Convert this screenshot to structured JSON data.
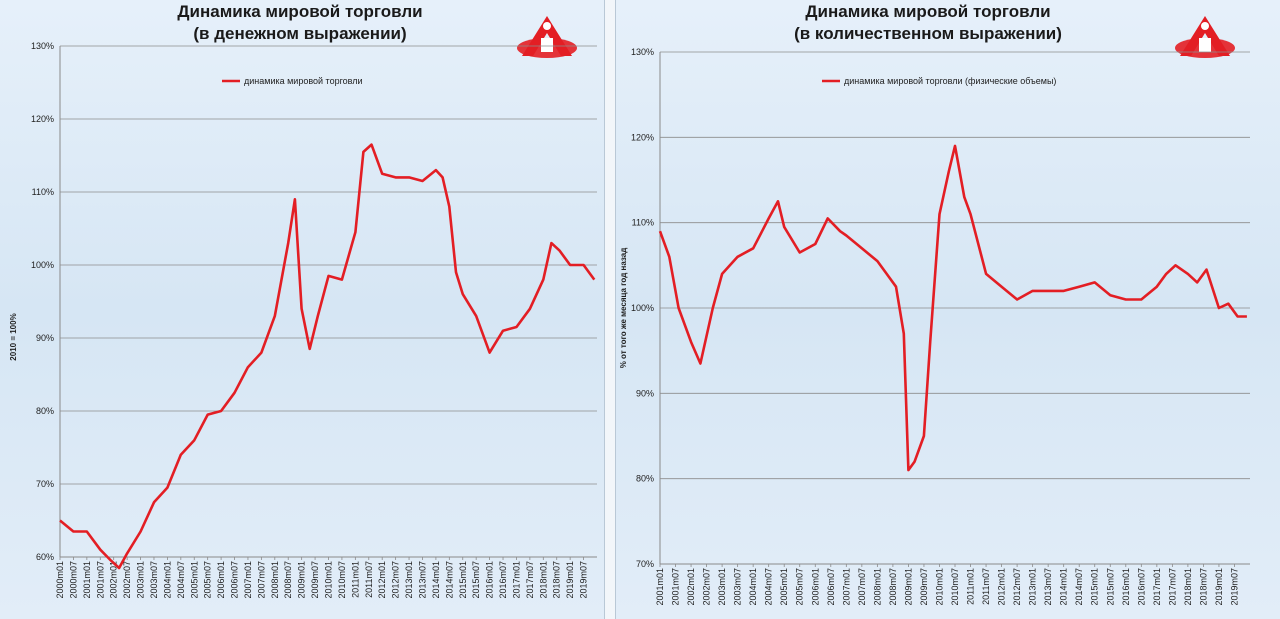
{
  "logo_color": "#e31e24",
  "line_color": "#e31e24",
  "chart_data": [
    {
      "type": "line",
      "title": "Динамика мировой торговли",
      "subtitle": "(в денежном выражении)",
      "ylabel": "2010 = 100%",
      "legend": "динамика мировой торговли",
      "legend_position": "top-center",
      "grid": true,
      "ylim": [
        60,
        130
      ],
      "yticks": [
        "60%",
        "70%",
        "80%",
        "90%",
        "100%",
        "110%",
        "120%",
        "130%"
      ],
      "x_ticks": [
        "2000m01",
        "2000m07",
        "2001m01",
        "2001m07",
        "2002m01",
        "2002m07",
        "2003m01",
        "2003m07",
        "2004m01",
        "2004m07",
        "2005m01",
        "2005m07",
        "2006m01",
        "2006m07",
        "2007m01",
        "2007m07",
        "2008m01",
        "2008m07",
        "2009m01",
        "2009m07",
        "2010m01",
        "2010m07",
        "2011m01",
        "2011m07",
        "2012m01",
        "2012m07",
        "2013m01",
        "2013m07",
        "2014m01",
        "2014m07",
        "2015m01",
        "2015m07",
        "2016m01",
        "2016m07",
        "2017m01",
        "2017m07",
        "2018m01",
        "2018m07",
        "2019m01",
        "2019m07"
      ],
      "x": [
        2000.0,
        2000.5,
        2001.0,
        2001.5,
        2001.9,
        2002.2,
        2002.5,
        2003.0,
        2003.5,
        2004.0,
        2004.5,
        2005.0,
        2005.5,
        2006.0,
        2006.5,
        2007.0,
        2007.5,
        2008.0,
        2008.25,
        2008.5,
        2008.75,
        2009.0,
        2009.3,
        2009.6,
        2010.0,
        2010.5,
        2011.0,
        2011.3,
        2011.6,
        2012.0,
        2012.5,
        2013.0,
        2013.5,
        2014.0,
        2014.25,
        2014.5,
        2014.75,
        2015.0,
        2015.5,
        2016.0,
        2016.5,
        2017.0,
        2017.5,
        2018.0,
        2018.3,
        2018.6,
        2019.0,
        2019.5,
        2019.9
      ],
      "values": [
        65,
        63.5,
        63.5,
        61,
        59.5,
        58.5,
        60.5,
        63.5,
        67.5,
        69.5,
        74,
        76,
        79.5,
        80,
        82.5,
        86,
        88,
        93,
        98,
        103,
        109,
        94,
        88.5,
        93,
        98.5,
        98,
        104.5,
        115.5,
        116.5,
        112.5,
        112,
        112,
        111.5,
        113,
        112,
        108,
        99,
        96,
        93,
        88,
        91,
        91.5,
        94,
        98,
        103,
        102,
        100,
        100,
        98
      ]
    },
    {
      "type": "line",
      "title": "Динамика мировой торговли",
      "subtitle": "(в количественном выражении)",
      "ylabel": "% от того же месяца год назад",
      "legend": "динамика мировой торговли (физические объемы)",
      "legend_position": "top-left",
      "grid": true,
      "ylim": [
        70,
        130
      ],
      "yticks": [
        "70%",
        "80%",
        "90%",
        "100%",
        "110%",
        "120%",
        "130%"
      ],
      "x_ticks": [
        "2001m01",
        "2001m07",
        "2002m01",
        "2002m07",
        "2003m01",
        "2003m07",
        "2004m01",
        "2004m07",
        "2005m01",
        "2005m07",
        "2006m01",
        "2006m07",
        "2007m01",
        "2007m07",
        "2008m01",
        "2008m07",
        "2009m01",
        "2009m07",
        "2010m01",
        "2010m07",
        "2011m01",
        "2011m07",
        "2012m01",
        "2012m07",
        "2013m01",
        "2013m07",
        "2014m01",
        "2014m07",
        "2015m01",
        "2015m07",
        "2016m01",
        "2016m07",
        "2017m01",
        "2017m07",
        "2018m01",
        "2018m07",
        "2019m01",
        "2019m07"
      ],
      "x": [
        2001.0,
        2001.3,
        2001.6,
        2002.0,
        2002.3,
        2002.7,
        2003.0,
        2003.5,
        2004.0,
        2004.5,
        2004.8,
        2005.0,
        2005.5,
        2006.0,
        2006.4,
        2006.8,
        2007.0,
        2007.5,
        2008.0,
        2008.3,
        2008.6,
        2008.85,
        2009.0,
        2009.2,
        2009.5,
        2009.7,
        2010.0,
        2010.3,
        2010.5,
        2010.8,
        2011.0,
        2011.5,
        2012.0,
        2012.5,
        2013.0,
        2013.5,
        2014.0,
        2014.5,
        2015.0,
        2015.5,
        2016.0,
        2016.5,
        2017.0,
        2017.3,
        2017.6,
        2018.0,
        2018.3,
        2018.6,
        2019.0,
        2019.3,
        2019.6,
        2019.9
      ],
      "values": [
        109,
        106,
        100,
        96,
        93.5,
        100,
        104,
        106,
        107,
        110.5,
        112.5,
        109.5,
        106.5,
        107.5,
        110.5,
        109,
        108.5,
        107,
        105.5,
        104,
        102.5,
        97,
        81,
        82,
        85,
        96,
        111,
        116,
        119,
        113,
        111,
        104,
        102.5,
        101,
        102,
        102,
        102,
        102.5,
        103,
        101.5,
        101,
        101,
        102.5,
        104,
        105,
        104,
        103,
        104.5,
        100,
        100.5,
        99,
        99
      ]
    }
  ]
}
